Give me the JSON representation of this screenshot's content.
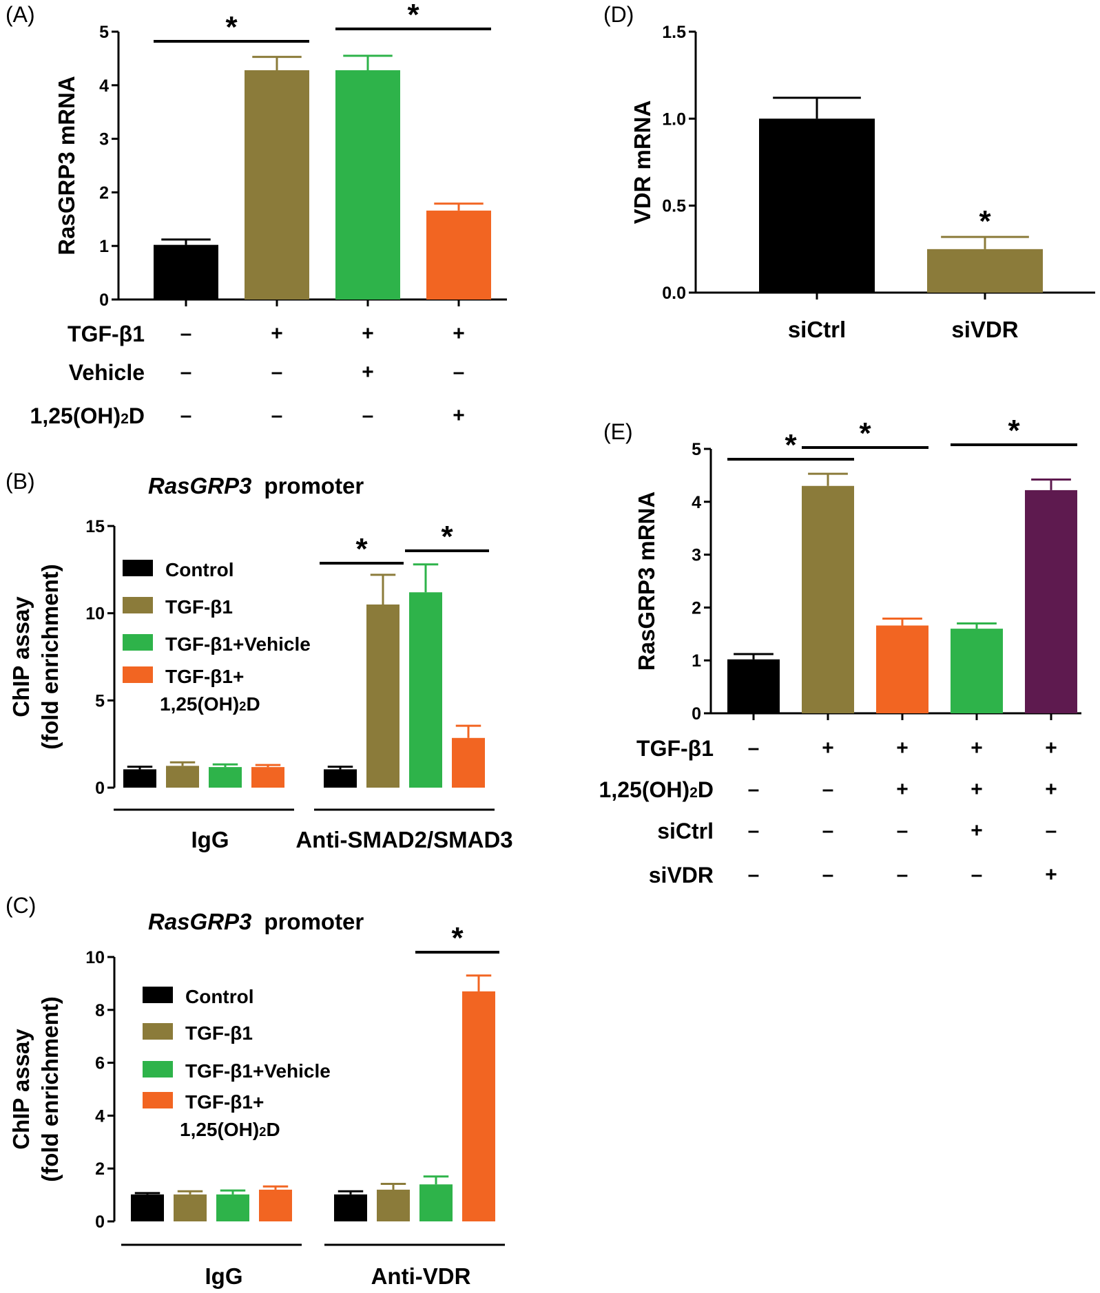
{
  "colors": {
    "control": "#000000",
    "tgf": "#8b7b3a",
    "vehicle": "#2eb34a",
    "vitd": "#f26522",
    "sivdr": "#5e1a4f"
  },
  "chart_data": [
    {
      "id": "A",
      "panel_label": "(A)",
      "type": "bar",
      "ylabel": "RasGRP3  mRNA",
      "ylim": [
        0,
        5
      ],
      "yticks": [
        "0",
        "1",
        "2",
        "3",
        "4",
        "5"
      ],
      "bars": [
        {
          "value": 1.02,
          "error": 0.1,
          "color": "#000000"
        },
        {
          "value": 4.28,
          "error": 0.25,
          "color": "#8b7b3a"
        },
        {
          "value": 4.28,
          "error": 0.27,
          "color": "#2eb34a"
        },
        {
          "value": 1.66,
          "error": 0.13,
          "color": "#f26522"
        }
      ],
      "significance": [
        {
          "from": 0,
          "to": 1,
          "label": "*"
        },
        {
          "from": 2,
          "to": 3,
          "label": "*"
        }
      ],
      "conditions": [
        {
          "label": "TGF-β1",
          "marks": [
            "–",
            "+",
            "+",
            "+"
          ]
        },
        {
          "label": "Vehicle",
          "marks": [
            "–",
            "–",
            "+",
            "–"
          ]
        },
        {
          "label": "1,25(OH)",
          "label_sub": "2",
          "label_tail": "D",
          "marks": [
            "–",
            "–",
            "–",
            "+"
          ]
        }
      ]
    },
    {
      "id": "B",
      "panel_label": "(B)",
      "type": "bar",
      "title_italic": "RasGRP3",
      "title_rest": "promoter",
      "ylabel": [
        "ChIP assay",
        "(fold enrichment)"
      ],
      "ylim": [
        0,
        15
      ],
      "yticks": [
        "0",
        "5",
        "10",
        "15"
      ],
      "legend": [
        {
          "label": "Control",
          "color": "#000000"
        },
        {
          "label": "TGF-β1",
          "color": "#8b7b3a"
        },
        {
          "label": "TGF-β1+Vehicle",
          "color": "#2eb34a"
        },
        {
          "label": "TGF-β1+",
          "label2": "1,25(OH)",
          "label2_sub": "2",
          "label2_tail": "D",
          "color": "#f26522"
        }
      ],
      "groups": [
        {
          "label": "IgG",
          "bars": [
            {
              "value": 1.05,
              "error": 0.15,
              "color": "#000000"
            },
            {
              "value": 1.25,
              "error": 0.2,
              "color": "#8b7b3a"
            },
            {
              "value": 1.18,
              "error": 0.15,
              "color": "#2eb34a"
            },
            {
              "value": 1.18,
              "error": 0.12,
              "color": "#f26522"
            }
          ]
        },
        {
          "label": "Anti-SMAD2/SMAD3",
          "bars": [
            {
              "value": 1.05,
              "error": 0.15,
              "color": "#000000"
            },
            {
              "value": 10.5,
              "error": 1.7,
              "color": "#8b7b3a"
            },
            {
              "value": 11.2,
              "error": 1.6,
              "color": "#2eb34a"
            },
            {
              "value": 2.85,
              "error": 0.7,
              "color": "#f26522"
            }
          ]
        }
      ],
      "significance": [
        {
          "group": 1,
          "from": 0,
          "to": 1,
          "label": "*"
        },
        {
          "group": 1,
          "from": 2,
          "to": 3,
          "label": "*"
        }
      ]
    },
    {
      "id": "C",
      "panel_label": "(C)",
      "type": "bar",
      "title_italic": "RasGRP3",
      "title_rest": "promoter",
      "ylabel": [
        "ChIP assay",
        "(fold enrichment)"
      ],
      "ylim": [
        0,
        10
      ],
      "yticks": [
        "0",
        "2",
        "4",
        "6",
        "8",
        "10"
      ],
      "legend": [
        {
          "label": "Control",
          "color": "#000000"
        },
        {
          "label": "TGF-β1",
          "color": "#8b7b3a"
        },
        {
          "label": "TGF-β1+Vehicle",
          "color": "#2eb34a"
        },
        {
          "label": "TGF-β1+",
          "label2": "1,25(OH)",
          "label2_sub": "2",
          "label2_tail": "D",
          "color": "#f26522"
        }
      ],
      "groups": [
        {
          "label": "IgG",
          "bars": [
            {
              "value": 1.02,
              "error": 0.05,
              "color": "#000000"
            },
            {
              "value": 1.02,
              "error": 0.12,
              "color": "#8b7b3a"
            },
            {
              "value": 1.02,
              "error": 0.15,
              "color": "#2eb34a"
            },
            {
              "value": 1.2,
              "error": 0.12,
              "color": "#f26522"
            }
          ]
        },
        {
          "label": "Anti-VDR",
          "bars": [
            {
              "value": 1.02,
              "error": 0.12,
              "color": "#000000"
            },
            {
              "value": 1.2,
              "error": 0.22,
              "color": "#8b7b3a"
            },
            {
              "value": 1.4,
              "error": 0.3,
              "color": "#2eb34a"
            },
            {
              "value": 8.7,
              "error": 0.6,
              "color": "#f26522"
            }
          ]
        }
      ],
      "significance": [
        {
          "group": 1,
          "from": 2,
          "to": 3,
          "label": "*"
        }
      ]
    },
    {
      "id": "D",
      "panel_label": "(D)",
      "type": "bar",
      "ylabel": "VDR mRNA",
      "ylim": [
        0,
        1.5
      ],
      "yticks": [
        "0.0",
        "0.5",
        "1.0",
        "1.5"
      ],
      "categories": [
        "siCtrl",
        "siVDR"
      ],
      "bars": [
        {
          "value": 1.0,
          "error": 0.12,
          "color": "#000000"
        },
        {
          "value": 0.25,
          "error": 0.07,
          "color": "#8b7b3a"
        }
      ],
      "significance": [
        {
          "bar": 1,
          "label": "*"
        }
      ]
    },
    {
      "id": "E",
      "panel_label": "(E)",
      "type": "bar",
      "ylabel": "RasGRP3  mRNA",
      "ylim": [
        0,
        5
      ],
      "yticks": [
        "0",
        "1",
        "2",
        "3",
        "4",
        "5"
      ],
      "bars": [
        {
          "value": 1.02,
          "error": 0.1,
          "color": "#000000"
        },
        {
          "value": 4.3,
          "error": 0.23,
          "color": "#8b7b3a"
        },
        {
          "value": 1.66,
          "error": 0.13,
          "color": "#f26522"
        },
        {
          "value": 1.6,
          "error": 0.1,
          "color": "#2eb34a"
        },
        {
          "value": 4.22,
          "error": 0.2,
          "color": "#5e1a4f"
        }
      ],
      "significance": [
        {
          "from": 0,
          "to": 1,
          "label": "*"
        },
        {
          "from": 1,
          "to": 2,
          "label": "*"
        },
        {
          "from": 3,
          "to": 4,
          "label": "*"
        }
      ],
      "conditions": [
        {
          "label": "TGF-β1",
          "marks": [
            "–",
            "+",
            "+",
            "+",
            "+"
          ]
        },
        {
          "label": "1,25(OH)",
          "label_sub": "2",
          "label_tail": "D",
          "marks": [
            "–",
            "–",
            "+",
            "+",
            "+"
          ]
        },
        {
          "label": "siCtrl",
          "marks": [
            "–",
            "–",
            "–",
            "+",
            "–"
          ]
        },
        {
          "label": "siVDR",
          "marks": [
            "–",
            "–",
            "–",
            "–",
            "+"
          ]
        }
      ]
    }
  ]
}
